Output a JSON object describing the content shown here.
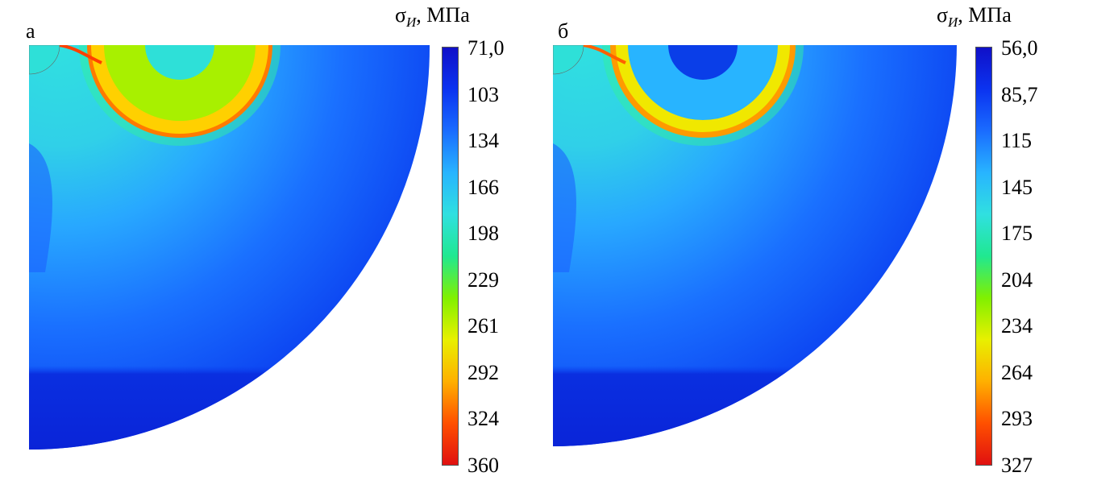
{
  "panels": [
    {
      "label": "а",
      "legend_title": {
        "symbol": "σ",
        "subscript": "И",
        "unit": ", МПа"
      },
      "ticks": [
        "71,0",
        "103",
        "134",
        "166",
        "198",
        "229",
        "261",
        "292",
        "324",
        "360"
      ],
      "ring_color": "#a8f000",
      "inner_color": "#2ee0d8"
    },
    {
      "label": "б",
      "legend_title": {
        "symbol": "σ",
        "subscript": "И",
        "unit": ", МПа"
      },
      "ticks": [
        "56,0",
        "85,7",
        "115",
        "145",
        "175",
        "204",
        "234",
        "264",
        "293",
        "327"
      ],
      "ring_color": "#28b4ff",
      "inner_color": "#0a3ee8"
    }
  ],
  "colormap": [
    "#1010c8",
    "#0b33f0",
    "#1a6cff",
    "#28b4ff",
    "#30e0e0",
    "#20e890",
    "#80f000",
    "#e8f000",
    "#ffb000",
    "#ff5000",
    "#e01010"
  ]
}
